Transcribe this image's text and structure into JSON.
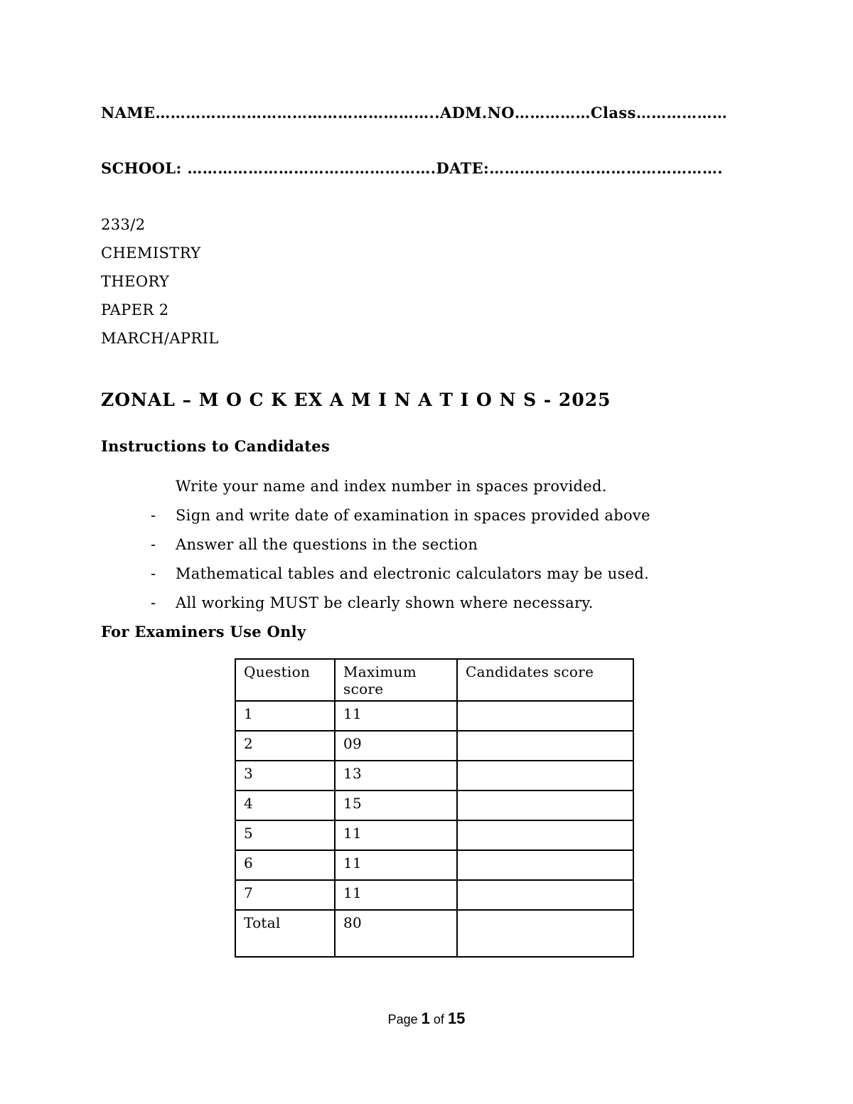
{
  "fields": {
    "name": {
      "label": "NAME",
      "dots": "……………………………………………….."
    },
    "admno": {
      "label": "ADM.NO",
      "dots": "……………"
    },
    "class": {
      "label": "Class",
      "dots": "………………"
    },
    "school": {
      "label": "SCHOOL: ",
      "dots": "…………………………………………."
    },
    "date": {
      "label": "DATE:",
      "dots": "………………………………………."
    }
  },
  "course": {
    "code": "233/2",
    "subject": "CHEMISTRY",
    "type": "THEORY",
    "paper": "PAPER 2",
    "session": "MARCH/APRIL"
  },
  "title": "ZONAL – M O C K  EX A M I N A T I O N S - 2025",
  "instructions": {
    "heading": "Instructions to Candidates",
    "items": [
      {
        "bullet": "",
        "text": "Write your name and index number in spaces provided."
      },
      {
        "bullet": "-",
        "text": "Sign and write date of examination in spaces provided above"
      },
      {
        "bullet": "-",
        "text": "Answer all the questions in the section"
      },
      {
        "bullet": "-",
        "text": "Mathematical tables and electronic calculators may be used."
      },
      {
        "bullet": "-",
        "text": "All working MUST be clearly shown where necessary."
      }
    ]
  },
  "examiners": {
    "heading": "For Examiners Use Only",
    "table": {
      "headers": [
        "Question",
        "Maximum score",
        "Candidates score"
      ],
      "rows": [
        {
          "question": "1",
          "max": "11",
          "candidate": ""
        },
        {
          "question": "2",
          "max": "09",
          "candidate": ""
        },
        {
          "question": "3",
          "max": "13",
          "candidate": ""
        },
        {
          "question": "4",
          "max": "15",
          "candidate": ""
        },
        {
          "question": "5",
          "max": "11",
          "candidate": ""
        },
        {
          "question": "6",
          "max": "11",
          "candidate": ""
        },
        {
          "question": "7",
          "max": "11",
          "candidate": ""
        },
        {
          "question": "Total",
          "max": "80",
          "candidate": ""
        }
      ]
    }
  },
  "footer": {
    "prefix": "Page",
    "current": "1",
    "middle": "of",
    "total": "15"
  }
}
